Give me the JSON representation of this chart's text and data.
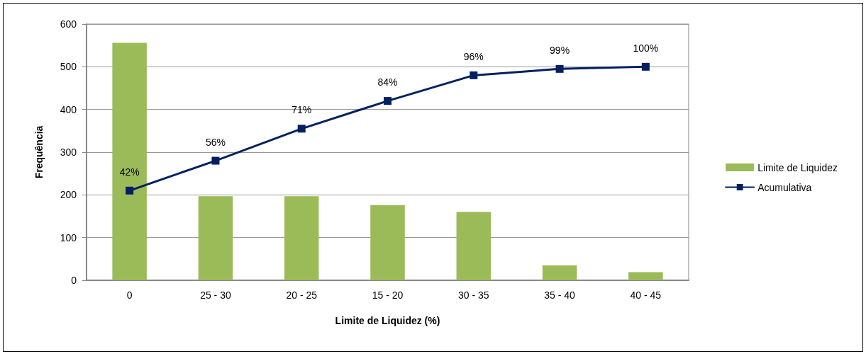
{
  "chart_data": {
    "type": "bar",
    "categories": [
      "0",
      "25 - 30",
      "20 - 25",
      "15 - 20",
      "30 - 35",
      "35 - 40",
      "40 - 45"
    ],
    "xlabel": "Limite de Liquidez (%)",
    "ylabel": "Frequência",
    "ylim": [
      0,
      600
    ],
    "yticks": [
      0,
      100,
      200,
      300,
      400,
      500,
      600
    ],
    "grid": "y",
    "legend": "right",
    "y2lim": [
      0,
      120
    ],
    "series": [
      {
        "name": "Limite de Liquidez",
        "color": "#9bbb59",
        "values": [
          556,
          197,
          197,
          176,
          160,
          35,
          19
        ]
      },
      {
        "name": "Acumulativa",
        "type": "line",
        "color": "#002060",
        "marker": "square",
        "axis": "y2",
        "values": [
          42,
          56,
          71,
          84,
          96,
          99,
          100
        ],
        "value_labels": [
          "42%",
          "56%",
          "71%",
          "84%",
          "96%",
          "99%",
          "100%"
        ]
      }
    ]
  }
}
